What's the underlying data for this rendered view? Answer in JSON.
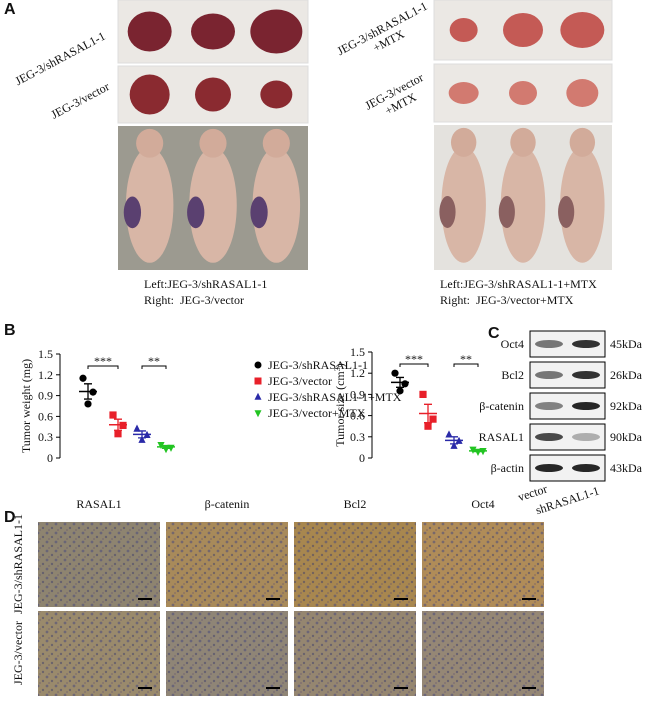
{
  "panel_a": {
    "label": "A",
    "left_labels": [
      [
        "JEG-3/shRASAL1-1"
      ],
      [
        "JEG-3/vector"
      ]
    ],
    "right_labels": [
      [
        "JEG-3/shRASAL1-1",
        "+MTX"
      ],
      [
        "JEG-3/vector",
        "+MTX"
      ]
    ],
    "left_caption": [
      "Left:JEG-3/shRASAL1-1",
      "Right:  JEG-3/vector"
    ],
    "right_caption": [
      "Left:JEG-3/shRASAL1-1+MTX",
      "Right:  JEG-3/vector+MTX"
    ]
  },
  "panel_b": {
    "label": "B",
    "chart_data": [
      {
        "type": "scatter",
        "ylabel": "Tumor weight (mg)",
        "ylim": [
          0,
          1.5
        ],
        "yticks": [
          0,
          0.3,
          0.6,
          0.9,
          1.2,
          1.5
        ],
        "categories": [
          null,
          null,
          null,
          null
        ],
        "series": [
          {
            "name": "JEG-3/shRASAL1-1",
            "color": "#000000",
            "marker": "circle",
            "values": [
              1.15,
              0.95,
              0.78
            ],
            "mean": 0.96,
            "sem": 0.11
          },
          {
            "name": "JEG-3/vector",
            "color": "#e8202a",
            "marker": "square",
            "values": [
              0.62,
              0.47,
              0.35
            ],
            "mean": 0.48,
            "sem": 0.08
          },
          {
            "name": "JEG-3/shRASAL1-1+MTX",
            "color": "#2a2aa8",
            "marker": "triangle-up",
            "values": [
              0.42,
              0.33,
              0.26
            ],
            "mean": 0.34,
            "sem": 0.05
          },
          {
            "name": "JEG-3/vector+MTX",
            "color": "#22c422",
            "marker": "triangle-down",
            "values": [
              0.19,
              0.15,
              0.13
            ],
            "mean": 0.16,
            "sem": 0.02
          }
        ],
        "annotations": [
          "***",
          "**"
        ]
      },
      {
        "type": "scatter",
        "ylabel": "Tumor size (cm",
        "ylabel_superscript": "3",
        "ylabel_end": ")",
        "ylim": [
          0,
          1.5
        ],
        "yticks": [
          0,
          0.3,
          0.6,
          0.9,
          1.2,
          1.5
        ],
        "categories": [
          null,
          null,
          null,
          null
        ],
        "series": [
          {
            "color": "#000000",
            "marker": "circle",
            "values": [
              1.2,
              1.05,
              0.95
            ],
            "mean": 1.07,
            "sem": 0.07
          },
          {
            "color": "#e8202a",
            "marker": "square",
            "values": [
              0.9,
              0.55,
              0.45
            ],
            "mean": 0.63,
            "sem": 0.13
          },
          {
            "color": "#2a2aa8",
            "marker": "triangle-up",
            "values": [
              0.33,
              0.24,
              0.17
            ],
            "mean": 0.25,
            "sem": 0.05
          },
          {
            "color": "#22c422",
            "marker": "triangle-down",
            "values": [
              0.12,
              0.1,
              0.09
            ],
            "mean": 0.1,
            "sem": 0.01
          }
        ],
        "annotations": [
          "***",
          "**"
        ]
      }
    ]
  },
  "panel_c": {
    "label": "C",
    "proteins": [
      "Oct4",
      "Bcl2",
      "β-catenin",
      "RASAL1",
      "β-actin"
    ],
    "sizes": [
      "45kDa",
      "26kDa",
      "92kDa",
      "90kDa",
      "43kDa"
    ],
    "lanes": [
      "vector",
      "shRASAL1-1"
    ]
  },
  "panel_d": {
    "label": "D",
    "columns": [
      "RASAL1",
      "β-catenin",
      "Bcl2",
      "Oct4"
    ],
    "rows": [
      "JEG-3/shRASAL1-1",
      "JEG-3/vector"
    ]
  }
}
